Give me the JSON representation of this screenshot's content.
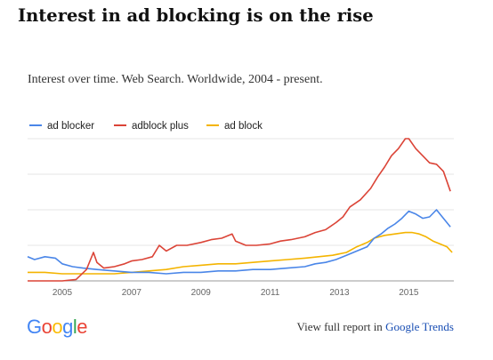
{
  "headline": "Interest in ad blocking is on the rise",
  "subtitle": "Interest over time. Web Search. Worldwide, 2004 - present.",
  "footer": {
    "prefix": "View full report in ",
    "link": "Google Trends"
  },
  "logo": {
    "letters": [
      "G",
      "o",
      "o",
      "g",
      "l",
      "e"
    ],
    "colors": [
      "#4285F4",
      "#EA4335",
      "#FBBC05",
      "#4285F4",
      "#34A853",
      "#EA4335"
    ]
  },
  "chart_data": {
    "type": "line",
    "x_range": [
      2004.0,
      2016.3
    ],
    "x_ticks": [
      "2005",
      "2007",
      "2009",
      "2011",
      "2013",
      "2015"
    ],
    "ylim": [
      0,
      100
    ],
    "grid": true,
    "legend_position": "top-left",
    "series": [
      {
        "name": "ad blocker",
        "color": "#4A86E8",
        "x": [
          2004.0,
          2004.2,
          2004.5,
          2004.8,
          2005.0,
          2005.3,
          2005.6,
          2006.0,
          2006.5,
          2007.0,
          2007.5,
          2008.0,
          2008.5,
          2009.0,
          2009.5,
          2010.0,
          2010.5,
          2011.0,
          2011.5,
          2012.0,
          2012.3,
          2012.6,
          2012.9,
          2013.2,
          2013.5,
          2013.8,
          2014.0,
          2014.2,
          2014.4,
          2014.6,
          2014.8,
          2015.0,
          2015.2,
          2015.4,
          2015.6,
          2015.8,
          2016.0,
          2016.2
        ],
        "values": [
          17,
          15,
          17,
          16,
          12,
          10,
          9,
          8,
          7,
          6,
          6,
          5,
          6,
          6,
          7,
          7,
          8,
          8,
          9,
          10,
          12,
          13,
          15,
          18,
          21,
          24,
          30,
          33,
          37,
          40,
          44,
          49,
          47,
          44,
          45,
          50,
          44,
          38
        ]
      },
      {
        "name": "adblock plus",
        "color": "#DB4437",
        "x": [
          2004.0,
          2004.5,
          2005.0,
          2005.4,
          2005.7,
          2005.9,
          2006.0,
          2006.2,
          2006.5,
          2006.8,
          2007.0,
          2007.3,
          2007.6,
          2007.8,
          2008.0,
          2008.3,
          2008.6,
          2009.0,
          2009.3,
          2009.6,
          2009.9,
          2010.0,
          2010.3,
          2010.6,
          2011.0,
          2011.3,
          2011.6,
          2012.0,
          2012.3,
          2012.6,
          2012.9,
          2013.1,
          2013.3,
          2013.6,
          2013.9,
          2014.1,
          2014.3,
          2014.5,
          2014.7,
          2014.9,
          2015.0,
          2015.2,
          2015.4,
          2015.6,
          2015.8,
          2016.0,
          2016.2
        ],
        "values": [
          0,
          0,
          0,
          1,
          8,
          20,
          13,
          9,
          10,
          12,
          14,
          15,
          17,
          25,
          21,
          25,
          25,
          27,
          29,
          30,
          33,
          28,
          25,
          25,
          26,
          28,
          29,
          31,
          34,
          36,
          41,
          45,
          52,
          57,
          65,
          73,
          80,
          88,
          93,
          100,
          100,
          93,
          88,
          83,
          82,
          77,
          63
        ]
      },
      {
        "name": "ad block",
        "color": "#F4B400",
        "x": [
          2004.0,
          2004.5,
          2005.0,
          2005.5,
          2006.0,
          2006.5,
          2007.0,
          2007.5,
          2008.0,
          2008.5,
          2009.0,
          2009.5,
          2010.0,
          2010.5,
          2011.0,
          2011.5,
          2012.0,
          2012.4,
          2012.8,
          2013.2,
          2013.5,
          2013.8,
          2014.0,
          2014.3,
          2014.6,
          2014.9,
          2015.1,
          2015.3,
          2015.5,
          2015.7,
          2015.9,
          2016.1,
          2016.25
        ],
        "values": [
          6,
          6,
          5,
          5,
          5,
          5,
          6,
          7,
          8,
          10,
          11,
          12,
          12,
          13,
          14,
          15,
          16,
          17,
          18,
          20,
          24,
          27,
          30,
          32,
          33,
          34,
          34,
          33,
          31,
          28,
          26,
          24,
          20
        ]
      }
    ]
  }
}
